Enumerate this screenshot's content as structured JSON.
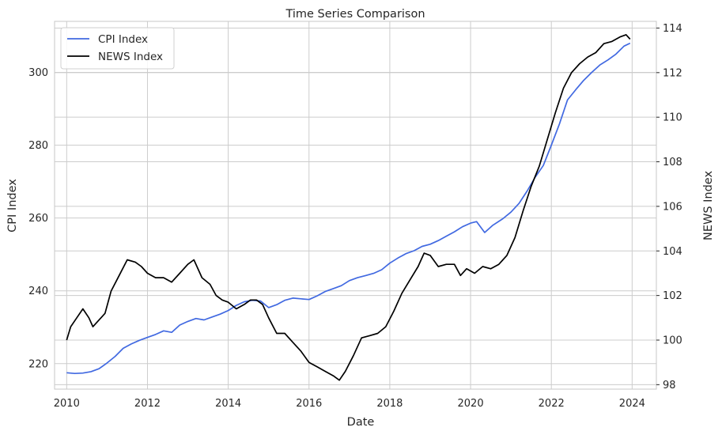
{
  "chart_data": {
    "type": "line",
    "title": "Time Series Comparison",
    "xlabel": "Date",
    "ylabel_left": "CPI Index",
    "ylabel_right": "NEWS Index",
    "xlim": [
      2009.7,
      2024.6
    ],
    "ylim_left": [
      213,
      314
    ],
    "ylim_right": [
      97.8,
      114.3
    ],
    "x_ticks": [
      2010,
      2012,
      2014,
      2016,
      2018,
      2020,
      2022,
      2024
    ],
    "y_ticks_left": [
      220,
      240,
      260,
      280,
      300
    ],
    "y_ticks_right": [
      98,
      100,
      102,
      104,
      106,
      108,
      110,
      112,
      114
    ],
    "grid": true,
    "legend_position": "top-left",
    "series": [
      {
        "name": "CPI Index",
        "axis": "left",
        "color": "#4169e1",
        "points": [
          [
            2010.0,
            217.5
          ],
          [
            2010.2,
            217.3
          ],
          [
            2010.4,
            217.4
          ],
          [
            2010.6,
            217.8
          ],
          [
            2010.8,
            218.6
          ],
          [
            2011.0,
            220.2
          ],
          [
            2011.2,
            222.0
          ],
          [
            2011.4,
            224.2
          ],
          [
            2011.6,
            225.4
          ],
          [
            2011.8,
            226.4
          ],
          [
            2012.0,
            227.2
          ],
          [
            2012.2,
            228.0
          ],
          [
            2012.4,
            229.0
          ],
          [
            2012.6,
            228.6
          ],
          [
            2012.8,
            230.6
          ],
          [
            2013.0,
            231.6
          ],
          [
            2013.2,
            232.4
          ],
          [
            2013.4,
            232.0
          ],
          [
            2013.6,
            232.8
          ],
          [
            2013.8,
            233.6
          ],
          [
            2014.0,
            234.6
          ],
          [
            2014.2,
            236.0
          ],
          [
            2014.4,
            237.0
          ],
          [
            2014.6,
            237.4
          ],
          [
            2014.8,
            237.2
          ],
          [
            2015.0,
            235.4
          ],
          [
            2015.2,
            236.2
          ],
          [
            2015.4,
            237.4
          ],
          [
            2015.6,
            238.0
          ],
          [
            2015.8,
            237.8
          ],
          [
            2016.0,
            237.6
          ],
          [
            2016.2,
            238.6
          ],
          [
            2016.4,
            239.8
          ],
          [
            2016.6,
            240.6
          ],
          [
            2016.8,
            241.4
          ],
          [
            2017.0,
            242.8
          ],
          [
            2017.2,
            243.6
          ],
          [
            2017.4,
            244.2
          ],
          [
            2017.6,
            244.8
          ],
          [
            2017.8,
            245.8
          ],
          [
            2018.0,
            247.6
          ],
          [
            2018.2,
            249.0
          ],
          [
            2018.4,
            250.2
          ],
          [
            2018.6,
            251.0
          ],
          [
            2018.8,
            252.2
          ],
          [
            2019.0,
            252.8
          ],
          [
            2019.2,
            253.8
          ],
          [
            2019.4,
            255.0
          ],
          [
            2019.6,
            256.2
          ],
          [
            2019.8,
            257.6
          ],
          [
            2020.0,
            258.6
          ],
          [
            2020.15,
            259.0
          ],
          [
            2020.35,
            256.0
          ],
          [
            2020.55,
            258.0
          ],
          [
            2020.8,
            259.8
          ],
          [
            2021.0,
            261.6
          ],
          [
            2021.2,
            264.0
          ],
          [
            2021.4,
            267.4
          ],
          [
            2021.6,
            271.2
          ],
          [
            2021.8,
            274.4
          ],
          [
            2022.0,
            280.0
          ],
          [
            2022.2,
            285.8
          ],
          [
            2022.4,
            292.4
          ],
          [
            2022.6,
            295.2
          ],
          [
            2022.8,
            297.8
          ],
          [
            2023.0,
            300.0
          ],
          [
            2023.2,
            302.0
          ],
          [
            2023.4,
            303.4
          ],
          [
            2023.6,
            305.0
          ],
          [
            2023.8,
            307.2
          ],
          [
            2023.95,
            308.0
          ]
        ]
      },
      {
        "name": "NEWS Index",
        "axis": "right",
        "color": "#000000",
        "points": [
          [
            2010.0,
            100.0
          ],
          [
            2010.1,
            100.6
          ],
          [
            2010.25,
            101.0
          ],
          [
            2010.4,
            101.4
          ],
          [
            2010.55,
            101.0
          ],
          [
            2010.65,
            100.6
          ],
          [
            2010.8,
            100.9
          ],
          [
            2010.95,
            101.2
          ],
          [
            2011.1,
            102.2
          ],
          [
            2011.3,
            102.9
          ],
          [
            2011.5,
            103.6
          ],
          [
            2011.7,
            103.5
          ],
          [
            2011.85,
            103.3
          ],
          [
            2012.0,
            103.0
          ],
          [
            2012.2,
            102.8
          ],
          [
            2012.4,
            102.8
          ],
          [
            2012.6,
            102.6
          ],
          [
            2012.8,
            103.0
          ],
          [
            2013.0,
            103.4
          ],
          [
            2013.15,
            103.6
          ],
          [
            2013.35,
            102.8
          ],
          [
            2013.55,
            102.5
          ],
          [
            2013.7,
            102.0
          ],
          [
            2013.85,
            101.8
          ],
          [
            2014.0,
            101.7
          ],
          [
            2014.2,
            101.4
          ],
          [
            2014.4,
            101.6
          ],
          [
            2014.55,
            101.8
          ],
          [
            2014.7,
            101.8
          ],
          [
            2014.85,
            101.6
          ],
          [
            2015.0,
            101.0
          ],
          [
            2015.2,
            100.3
          ],
          [
            2015.4,
            100.3
          ],
          [
            2015.6,
            99.9
          ],
          [
            2015.8,
            99.5
          ],
          [
            2016.0,
            99.0
          ],
          [
            2016.2,
            98.8
          ],
          [
            2016.4,
            98.6
          ],
          [
            2016.6,
            98.4
          ],
          [
            2016.75,
            98.2
          ],
          [
            2016.9,
            98.6
          ],
          [
            2017.1,
            99.3
          ],
          [
            2017.3,
            100.1
          ],
          [
            2017.5,
            100.2
          ],
          [
            2017.7,
            100.3
          ],
          [
            2017.9,
            100.6
          ],
          [
            2018.1,
            101.3
          ],
          [
            2018.3,
            102.1
          ],
          [
            2018.5,
            102.7
          ],
          [
            2018.7,
            103.3
          ],
          [
            2018.85,
            103.9
          ],
          [
            2019.0,
            103.8
          ],
          [
            2019.2,
            103.3
          ],
          [
            2019.4,
            103.4
          ],
          [
            2019.6,
            103.4
          ],
          [
            2019.75,
            102.9
          ],
          [
            2019.9,
            103.2
          ],
          [
            2020.1,
            103.0
          ],
          [
            2020.3,
            103.3
          ],
          [
            2020.5,
            103.2
          ],
          [
            2020.7,
            103.4
          ],
          [
            2020.9,
            103.8
          ],
          [
            2021.1,
            104.6
          ],
          [
            2021.3,
            105.8
          ],
          [
            2021.5,
            106.9
          ],
          [
            2021.7,
            107.8
          ],
          [
            2021.9,
            109.0
          ],
          [
            2022.1,
            110.2
          ],
          [
            2022.3,
            111.3
          ],
          [
            2022.5,
            112.0
          ],
          [
            2022.7,
            112.4
          ],
          [
            2022.9,
            112.7
          ],
          [
            2023.1,
            112.9
          ],
          [
            2023.3,
            113.3
          ],
          [
            2023.5,
            113.4
          ],
          [
            2023.7,
            113.6
          ],
          [
            2023.85,
            113.7
          ],
          [
            2023.95,
            113.5
          ]
        ]
      }
    ]
  }
}
